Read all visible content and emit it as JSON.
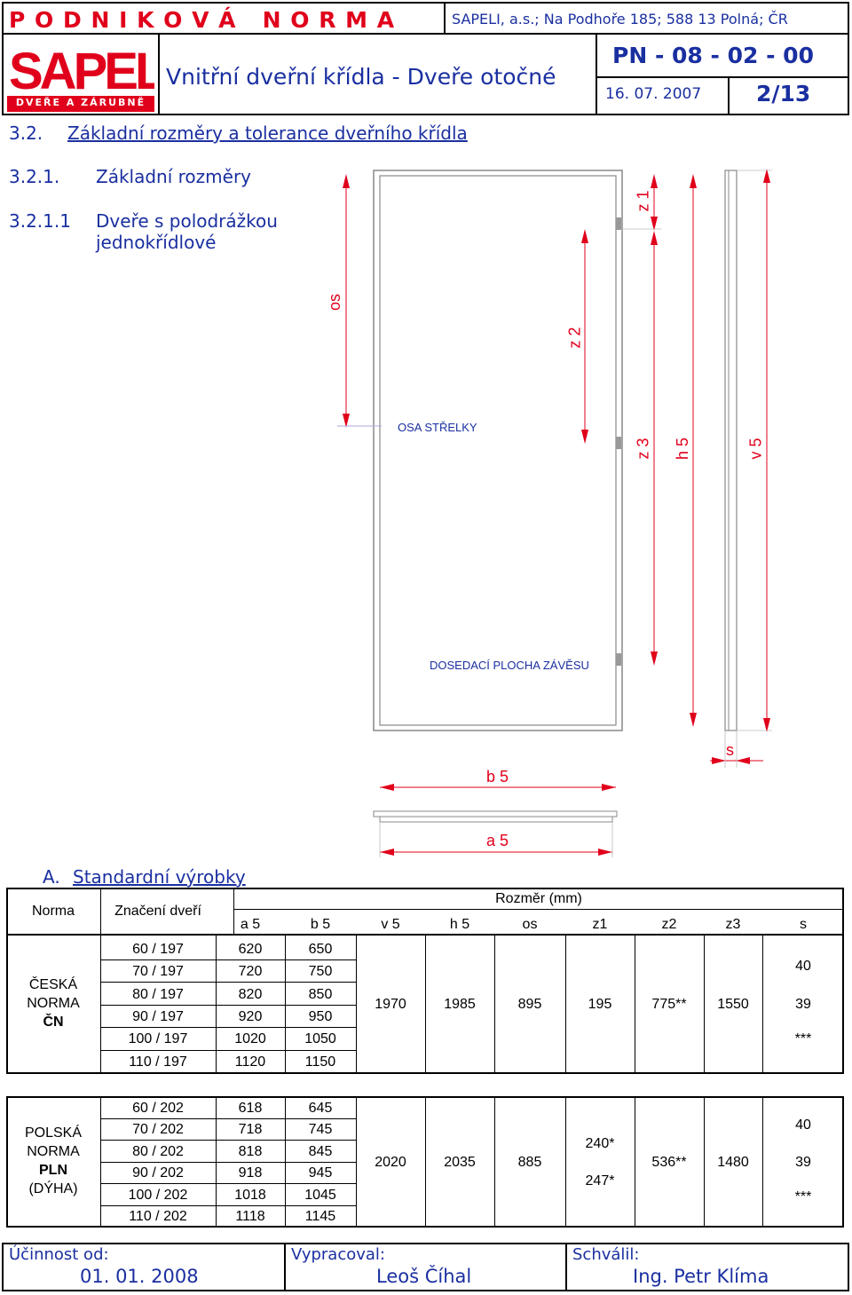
{
  "header": {
    "company_heading": "P O D N I K O V Á   N O R M A",
    "address": "SAPELI, a.s.; Na Podhoře 185; 588 13 Polná; ČR",
    "logo_text": "SAPELI",
    "logo_tagline": "DVEŘE A ZÁRUBNĚ",
    "doc_title": "Vnitřní dveřní křídla - Dveře otočné",
    "norm_code": "PN - 08 - 02 - 00",
    "date": "16. 07. 2007",
    "page": "2/13"
  },
  "sections": {
    "s1_num": "3.2.",
    "s1_title": "Základní rozměry a tolerance dveřního křídla",
    "s2_num": "3.2.1.",
    "s2_title": "Základní rozměry",
    "s3_num": "3.2.1.1",
    "s3_title_line1": "Dveře s polodrážkou",
    "s3_title_line2": "jednokřídlové"
  },
  "drawing": {
    "label_os": "os",
    "label_z1": "z 1",
    "label_z2": "z 2",
    "label_z3": "z 3",
    "label_h5": "h 5",
    "label_v5": "v 5",
    "label_s": "s",
    "label_b5": "b 5",
    "label_a5": "a 5",
    "osa_strelky": "OSA STŘELKY",
    "dosedaci_plocha": "DOSEDACÍ PLOCHA ZÁVĚSU",
    "accent_color": "#e0001b"
  },
  "table_section": {
    "letter": "A.",
    "title": "Standardní výrobky"
  },
  "table": {
    "col_norma": "Norma",
    "col_znaceni": "Značení dveří",
    "col_rozmer": "Rozměr (mm)",
    "cols": [
      "a 5",
      "b 5",
      "v 5",
      "h 5",
      "os",
      "z1",
      "z2",
      "z3",
      "s"
    ],
    "cn": {
      "norma_l1": "ČESKÁ",
      "norma_l2": "NORMA",
      "norma_l3": "ČN",
      "rows": [
        [
          "60 / 197",
          "620",
          "650"
        ],
        [
          "70 / 197",
          "720",
          "750"
        ],
        [
          "80 / 197",
          "820",
          "850"
        ],
        [
          "90 / 197",
          "920",
          "950"
        ],
        [
          "100 / 197",
          "1020",
          "1050"
        ],
        [
          "110 / 197",
          "1120",
          "1150"
        ]
      ],
      "v5": "1970",
      "h5": "1985",
      "os": "895",
      "z1": "195",
      "z2": "775**",
      "z3": "1550",
      "s_values": [
        "40",
        "39",
        "***"
      ]
    },
    "pln": {
      "norma_l1": "POLSKÁ",
      "norma_l2": "NORMA",
      "norma_l3": "PLN",
      "norma_l4": "(DÝHA)",
      "rows": [
        [
          "60 / 202",
          "618",
          "645"
        ],
        [
          "70 / 202",
          "718",
          "745"
        ],
        [
          "80 / 202",
          "818",
          "845"
        ],
        [
          "90 / 202",
          "918",
          "945"
        ],
        [
          "100 / 202",
          "1018",
          "1045"
        ],
        [
          "110 / 202",
          "1118",
          "1145"
        ]
      ],
      "v5": "2020",
      "h5": "2035",
      "os": "885",
      "z1_values": [
        "240*",
        "247*"
      ],
      "z2": "536**",
      "z3": "1480",
      "s_values": [
        "40",
        "39",
        "***"
      ]
    }
  },
  "footer": {
    "ucinnost_label": "Účinnost od:",
    "ucinnost_value": "01. 01. 2008",
    "vypracoval_label": "Vypracoval:",
    "vypracoval_value": "Leoš Číhal",
    "schvalil_label": "Schválil:",
    "schvalil_value": "Ing. Petr Klíma"
  }
}
